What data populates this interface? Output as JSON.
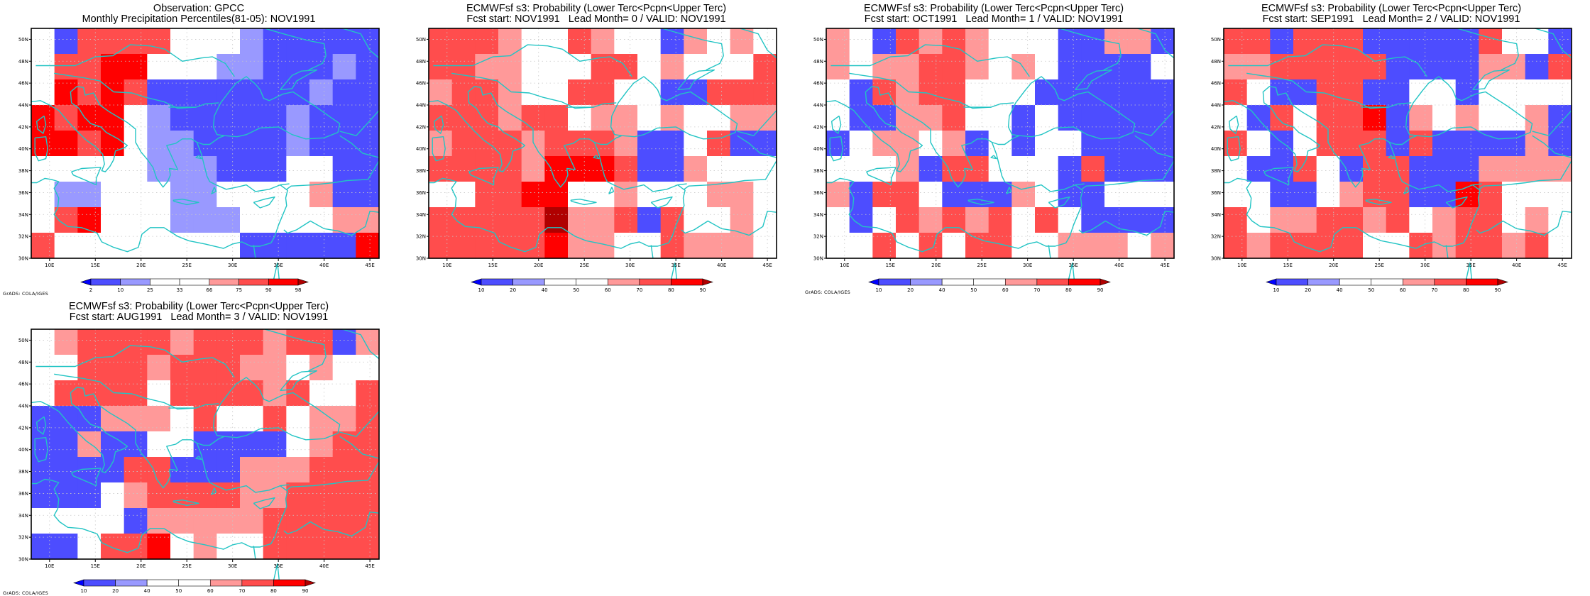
{
  "credit": "GrADS: COLA/IGES",
  "grid": {
    "lon_range": [
      8,
      46
    ],
    "lat_range": [
      30,
      51
    ],
    "cols": 15,
    "rows": 9,
    "lon_ticks": [
      "10E",
      "15E",
      "20E",
      "25E",
      "30E",
      "35E",
      "40E",
      "45E"
    ],
    "lat_ticks": [
      "30N",
      "32N",
      "34N",
      "36N",
      "38N",
      "40N",
      "42N",
      "44N",
      "46N",
      "48N",
      "50N"
    ]
  },
  "colors": {
    "coast": "#22c4c4",
    "frame": "#000000",
    "gridline": "#c8c8c8",
    "palette": [
      "#0000ff",
      "#4d4dff",
      "#9999ff",
      "#ffffff",
      "#ff9999",
      "#ff4d4d",
      "#ff0000",
      "#b00000"
    ]
  },
  "panels": [
    {
      "title_line1": "Observation: GPCC",
      "title_line2": "Monthly Precipitation Percentiles(81-05): NOV1991",
      "colorbar": {
        "labels": [
          "2",
          "10",
          "25",
          "33",
          "66",
          "75",
          "90",
          "98"
        ]
      },
      "cells": [
        "315555333211111",
        "355663332211121",
        "365651111111211",
        "656632111112111",
        "665632211112111",
        "333332221113311",
        "322333223333411",
        "356333222333344",
        "533333333111116"
      ]
    },
    {
      "title_line1": "ECMWFsf s3: Probability (Lower Terc<Pcpn<Upper Terc)",
      "title_line2": "Fcst start: NOV1991   Lead Month= 0 / VALID: NOV1991",
      "colorbar": {
        "labels": [
          "10",
          "20",
          "40",
          "50",
          "60",
          "70",
          "80",
          "90"
        ]
      },
      "cells": [
        "555433543314343",
        "554433355343335",
        "455433553311555",
        "555455344343344",
        "455545554113511",
        "555546665114333",
        "335566334333443",
        "555557445153343",
        "555556443354443"
      ]
    },
    {
      "title_line1": "ECMWFsf s3: Probability (Lower Terc<Pcpn<Upper Terc)",
      "title_line2": "Fcst start: OCT1991   Lead Month= 1 / VALID: NOV1991",
      "colorbar": {
        "labels": [
          "10",
          "20",
          "40",
          "50",
          "60",
          "70",
          "80",
          "90"
        ]
      },
      "cells": [
        "431545433311441",
        "434455434311113",
        "315455333111111",
        "311445331311111",
        "134434131331111",
        "333415533315111",
        "415531114311333",
        "313545453531111",
        "335353553344434"
      ]
    },
    {
      "title_line1": "ECMWFsf s3: Probability (Lower Terc<Pcpn<Upper Terc)",
      "title_line2": "Fcst start: SEP1991   Lead Month= 2 / VALID: NOV1991",
      "colorbar": {
        "labels": [
          "10",
          "20",
          "40",
          "50",
          "60",
          "70",
          "80",
          "90"
        ]
      },
      "cells": [
        "551555111115331",
        "445555511114415",
        "531155113313333",
        "315355614343341",
        "531355515111141",
        "311531551114444",
        "331134551165333",
        "534455453455343",
        "545555335455453"
      ]
    },
    {
      "title_line1": "ECMWFsf s3: Probability (Lower Terc<Pcpn<Upper Terc)",
      "title_line2": "Fcst start: AUG1991   Lead Month= 3 / VALID: NOV1991",
      "colorbar": {
        "labels": [
          "10",
          "20",
          "40",
          "50",
          "60",
          "70",
          "80",
          "90"
        ]
      },
      "cells": [
        "345555455545514",
        "335554555443433",
        "355553555545335",
        "111444353353445",
        "114113311113455",
        "111155111444555",
        "111345555445555",
        "333314444455555",
        "113556343355555"
      ]
    }
  ]
}
